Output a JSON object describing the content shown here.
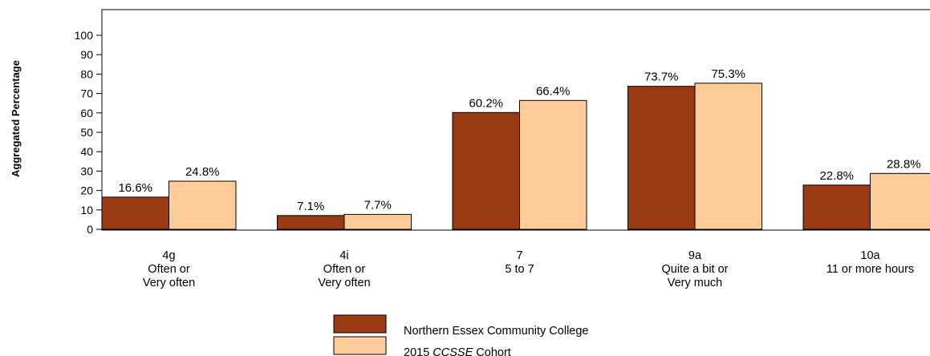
{
  "chart_data": {
    "type": "bar",
    "ylabel": "Aggregated Percentage",
    "ylim": [
      0,
      100
    ],
    "yticks": [
      0,
      10,
      20,
      30,
      40,
      50,
      60,
      70,
      80,
      90,
      100
    ],
    "grid": false,
    "categories": [
      [
        "4g",
        "Often or",
        "Very often"
      ],
      [
        "4i",
        "Often or",
        "Very often"
      ],
      [
        "7",
        "5 to 7"
      ],
      [
        "9a",
        "Quite a bit or",
        "Very much"
      ],
      [
        "10a",
        "11 or more hours"
      ]
    ],
    "series": [
      {
        "name": "Northern Essex Community College",
        "color": "#9A3A12",
        "values": [
          16.6,
          7.1,
          60.2,
          73.7,
          22.8
        ],
        "labels": [
          "16.6%",
          "7.1%",
          "60.2%",
          "73.7%",
          "22.8%"
        ]
      },
      {
        "name": "2015 CCSSE Cohort",
        "name_parts": [
          "2015 ",
          "CCSSE",
          " Cohort"
        ],
        "color": "#FFCC99",
        "values": [
          24.8,
          7.7,
          66.4,
          75.3,
          28.8
        ],
        "labels": [
          "24.8%",
          "7.7%",
          "66.4%",
          "75.3%",
          "28.8%"
        ]
      }
    ],
    "legend_position": "bottom-center"
  }
}
